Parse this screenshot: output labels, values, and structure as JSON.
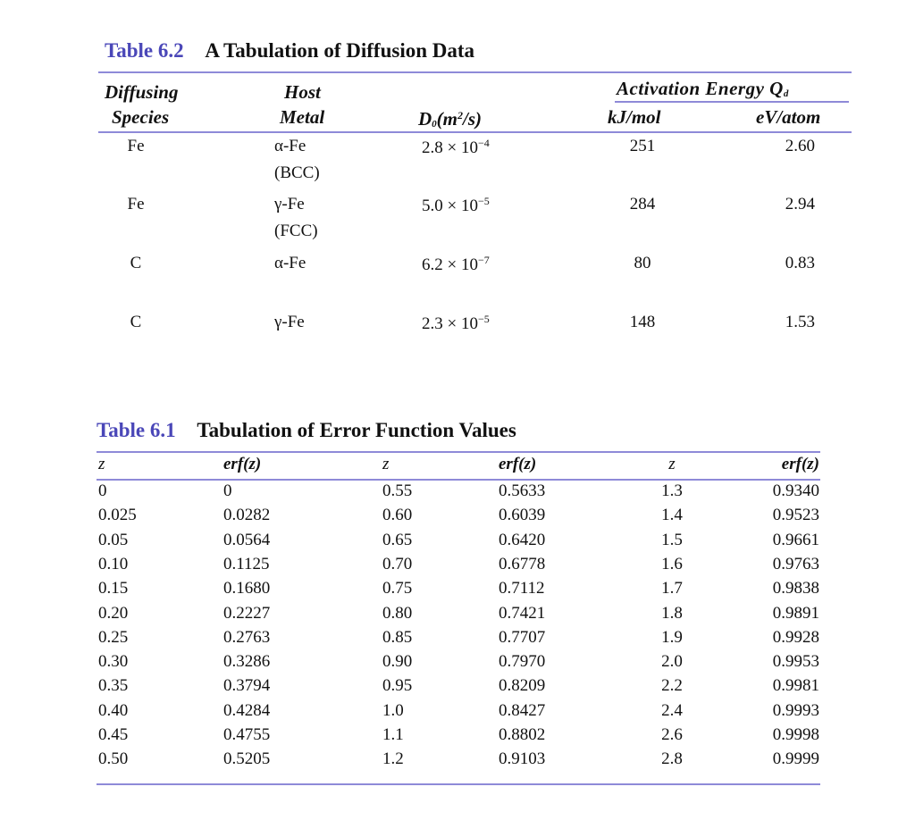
{
  "table62": {
    "number": "Table 6.2",
    "title": "A Tabulation of Diffusion Data",
    "headers": {
      "species_1": "Diffusing",
      "species_2": "Species",
      "host_1": "Host",
      "host_2": "Metal",
      "d0_main": "D",
      "d0_sub": "0",
      "d0_unit_a": "(m",
      "d0_unit_sup": "2",
      "d0_unit_b": "/s)",
      "activation": "Activation Energy Q",
      "activation_sub": "d",
      "kj": "kJ/mol",
      "ev": "eV/atom"
    },
    "rows": [
      {
        "species": "Fe",
        "host": "α-Fe",
        "structure": "(BCC)",
        "d0_mantissa": "2.8 × 10",
        "d0_exponent": "−4",
        "kj": "251",
        "ev": "2.60"
      },
      {
        "species": "Fe",
        "host": "γ-Fe",
        "structure": "(FCC)",
        "d0_mantissa": "5.0 × 10",
        "d0_exponent": "−5",
        "kj": "284",
        "ev": "2.94"
      },
      {
        "species": "C",
        "host": "α-Fe",
        "structure": "",
        "d0_mantissa": "6.2 × 10",
        "d0_exponent": "−7",
        "kj": "80",
        "ev": "0.83"
      },
      {
        "species": "C",
        "host": "γ-Fe",
        "structure": "",
        "d0_mantissa": "2.3 × 10",
        "d0_exponent": "−5",
        "kj": "148",
        "ev": "1.53"
      }
    ]
  },
  "table61": {
    "number": "Table 6.1",
    "title": "Tabulation of Error Function Values",
    "headers": [
      "z",
      "erf(z)",
      "z",
      "erf(z)",
      "z",
      "erf(z)"
    ],
    "rows": [
      [
        "0",
        "0",
        "0.55",
        "0.5633",
        "1.3",
        "0.9340"
      ],
      [
        "0.025",
        "0.0282",
        "0.60",
        "0.6039",
        "1.4",
        "0.9523"
      ],
      [
        "0.05",
        "0.0564",
        "0.65",
        "0.6420",
        "1.5",
        "0.9661"
      ],
      [
        "0.10",
        "0.1125",
        "0.70",
        "0.6778",
        "1.6",
        "0.9763"
      ],
      [
        "0.15",
        "0.1680",
        "0.75",
        "0.7112",
        "1.7",
        "0.9838"
      ],
      [
        "0.20",
        "0.2227",
        "0.80",
        "0.7421",
        "1.8",
        "0.9891"
      ],
      [
        "0.25",
        "0.2763",
        "0.85",
        "0.7707",
        "1.9",
        "0.9928"
      ],
      [
        "0.30",
        "0.3286",
        "0.90",
        "0.7970",
        "2.0",
        "0.9953"
      ],
      [
        "0.35",
        "0.3794",
        "0.95",
        "0.8209",
        "2.2",
        "0.9981"
      ],
      [
        "0.40",
        "0.4284",
        "1.0",
        "0.8427",
        "2.4",
        "0.9993"
      ],
      [
        "0.45",
        "0.4755",
        "1.1",
        "0.8802",
        "2.6",
        "0.9998"
      ],
      [
        "0.50",
        "0.5205",
        "1.2",
        "0.9103",
        "2.8",
        "0.9999"
      ]
    ]
  }
}
